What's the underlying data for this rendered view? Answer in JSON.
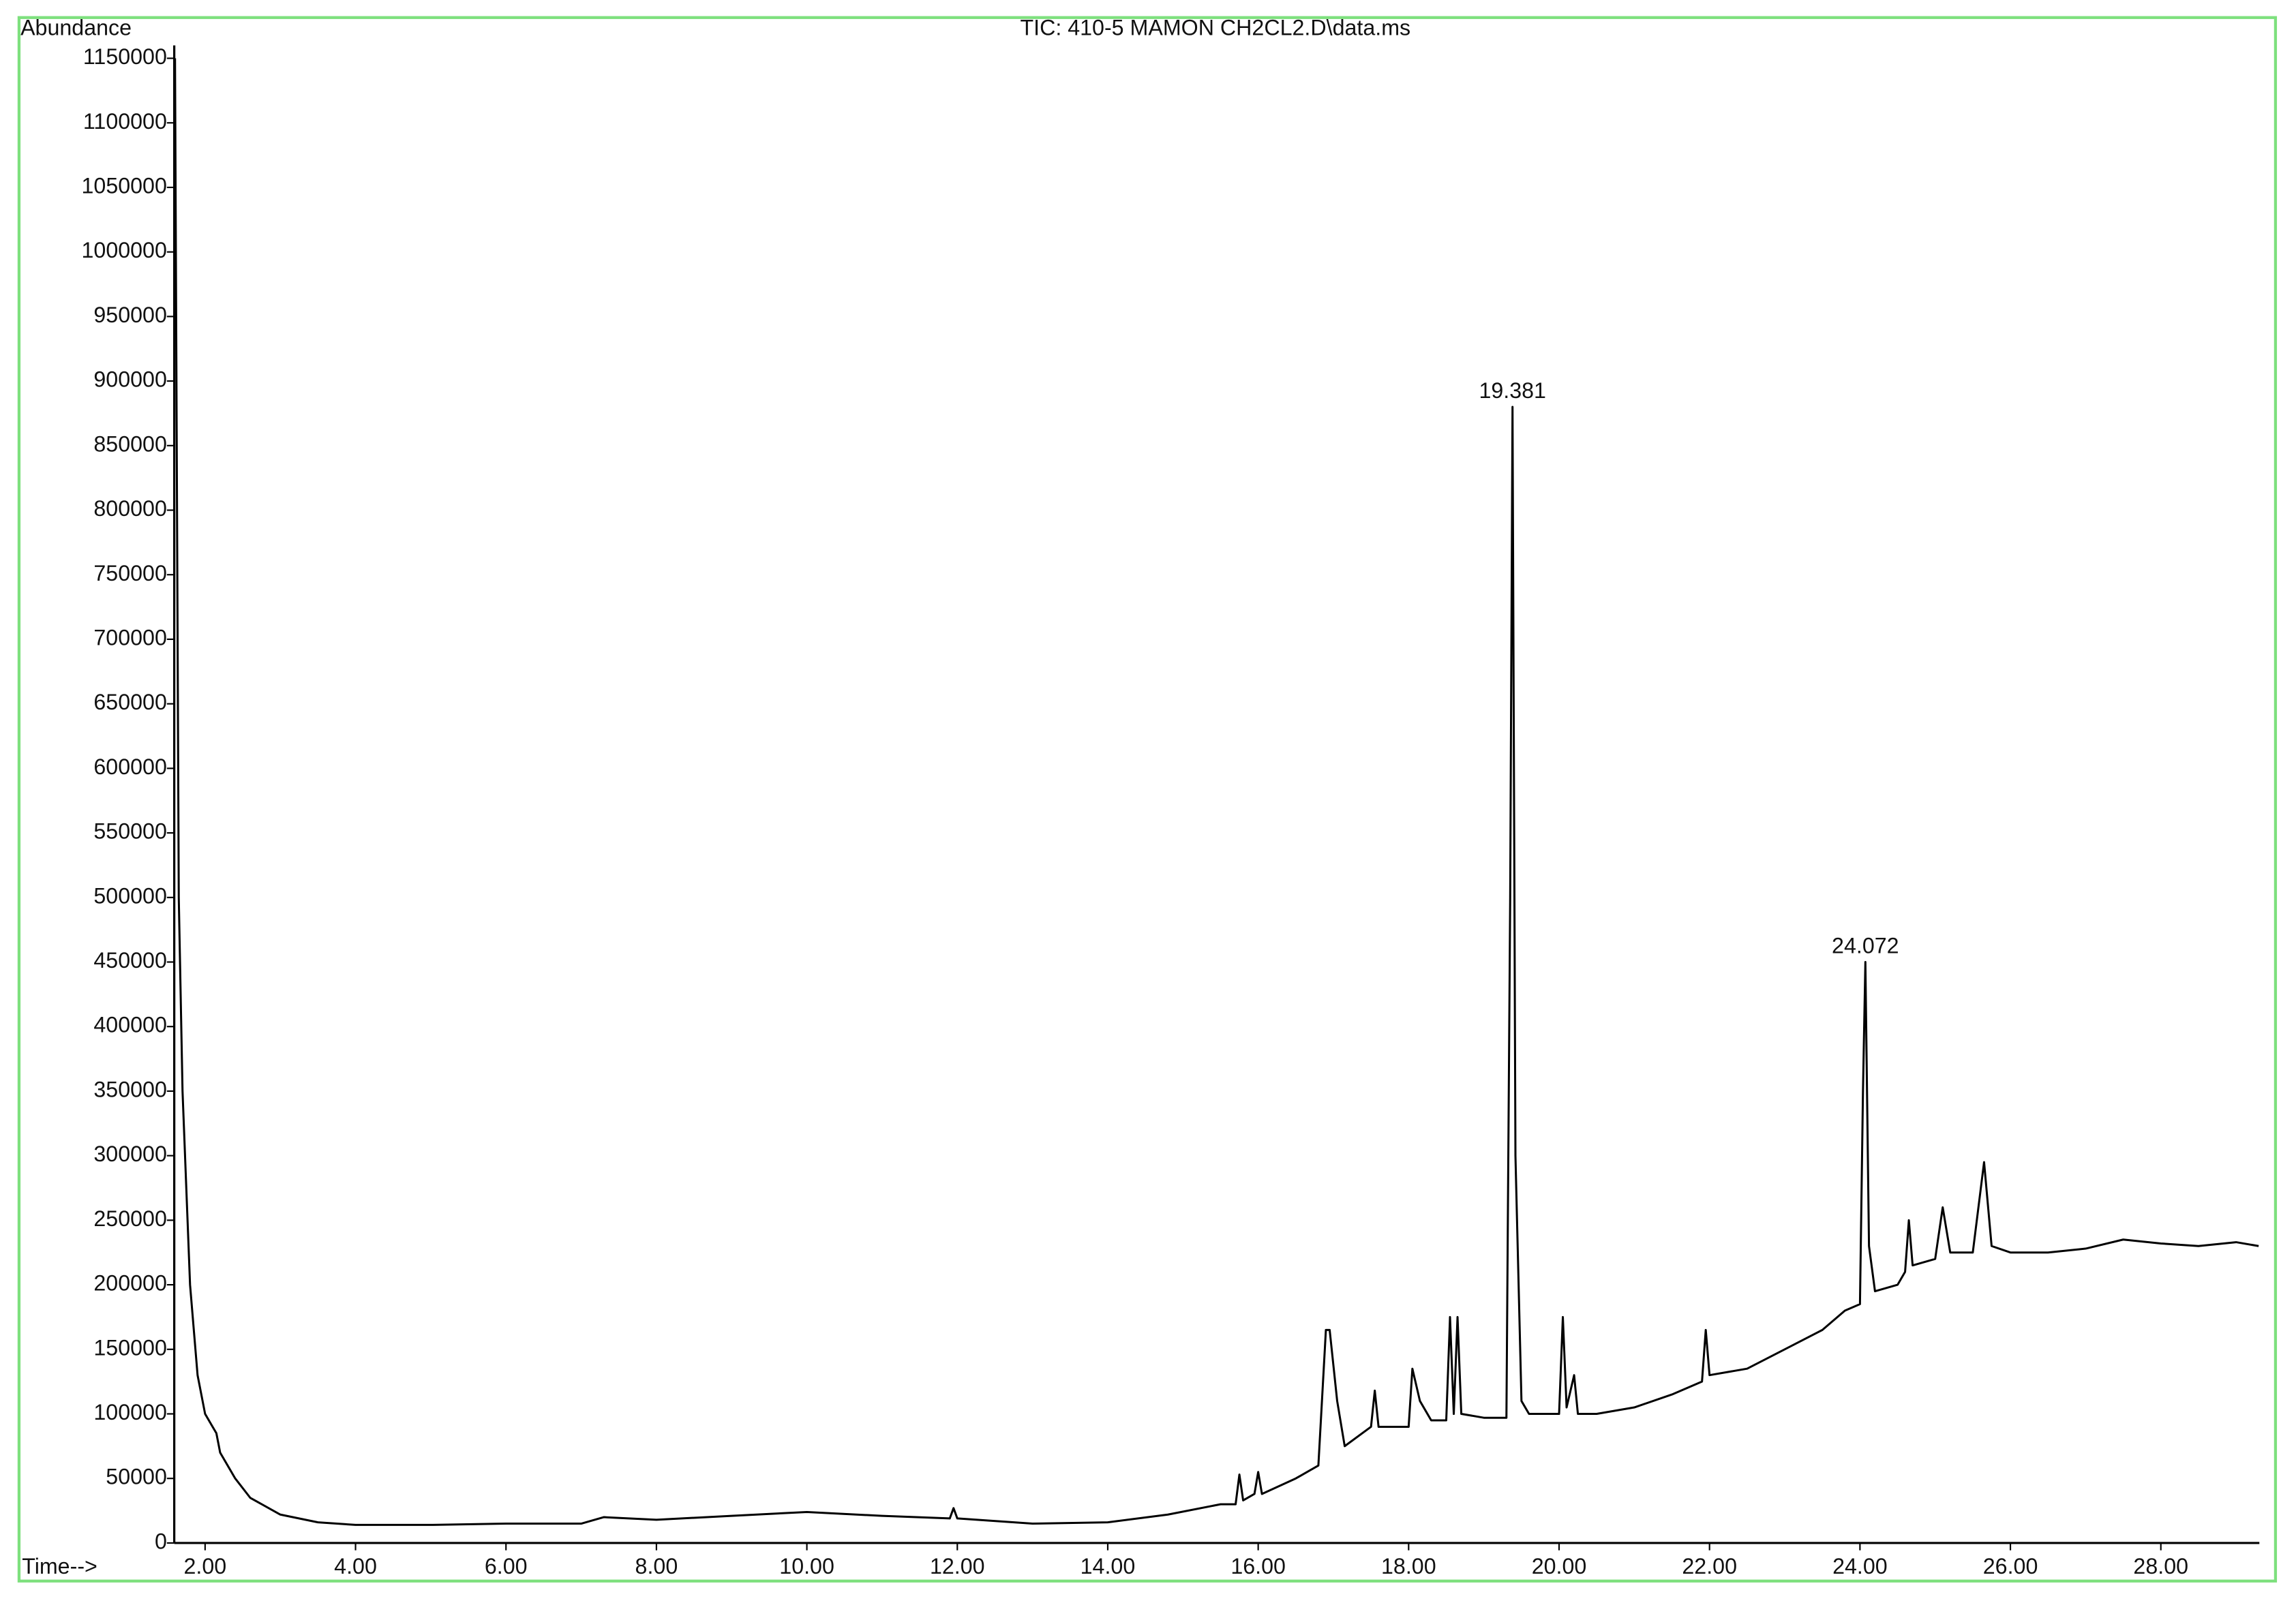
{
  "chart_data": {
    "type": "line",
    "title": "TIC: 410-5 MAMON CH2CL2.D\\data.ms",
    "y_label": "Abundance",
    "x_label": "Time-->",
    "color": "#000000",
    "x": [
      1.6,
      1.65,
      1.7,
      1.8,
      1.9,
      2.0,
      2.1,
      2.15,
      2.2,
      2.4,
      2.6,
      3.0,
      3.5,
      4.0,
      5.0,
      6.0,
      7.0,
      7.3,
      8.0,
      9.0,
      10.0,
      11.0,
      11.9,
      11.95,
      12.0,
      13.0,
      14.0,
      14.8,
      15.5,
      15.7,
      15.75,
      15.8,
      15.95,
      16.0,
      16.05,
      16.5,
      16.8,
      16.9,
      16.95,
      17.05,
      17.15,
      17.5,
      17.55,
      17.6,
      18.0,
      18.05,
      18.15,
      18.3,
      18.5,
      18.55,
      18.6,
      18.65,
      18.7,
      19.0,
      19.3,
      19.35,
      19.381,
      19.42,
      19.5,
      19.6,
      20.0,
      20.05,
      20.1,
      20.2,
      20.25,
      20.5,
      21.0,
      21.5,
      21.9,
      21.95,
      22.0,
      22.5,
      23.0,
      23.5,
      23.8,
      24.0,
      24.04,
      24.072,
      24.12,
      24.2,
      24.5,
      24.6,
      24.65,
      24.7,
      25.0,
      25.1,
      25.2,
      25.5,
      25.65,
      25.75,
      26.0,
      26.5,
      27.0,
      27.5,
      28.0,
      28.5,
      29.0,
      29.3
    ],
    "values": [
      1150000,
      500000,
      350000,
      200000,
      130000,
      100000,
      90000,
      85000,
      70000,
      50000,
      35000,
      22000,
      16000,
      14000,
      14000,
      15000,
      15000,
      20000,
      18000,
      21000,
      24000,
      21000,
      19000,
      27000,
      19000,
      15000,
      16000,
      22000,
      30000,
      30000,
      53000,
      33000,
      38000,
      55000,
      38000,
      50000,
      60000,
      165000,
      165000,
      110000,
      75000,
      90000,
      118000,
      90000,
      90000,
      135000,
      110000,
      95000,
      95000,
      175000,
      100000,
      175000,
      100000,
      97000,
      97000,
      500000,
      880000,
      300000,
      110000,
      100000,
      100000,
      175000,
      105000,
      130000,
      100000,
      100000,
      105000,
      115000,
      125000,
      165000,
      130000,
      135000,
      150000,
      165000,
      180000,
      185000,
      350000,
      450000,
      230000,
      195000,
      200000,
      210000,
      250000,
      215000,
      220000,
      260000,
      225000,
      225000,
      295000,
      230000,
      225000,
      225000,
      228000,
      235000,
      232000,
      230000,
      233000,
      230000
    ],
    "annotations": [
      {
        "text": "19.381",
        "x": 19.381,
        "y": 880000
      },
      {
        "text": "24.072",
        "x": 24.072,
        "y": 450000
      }
    ],
    "xlim": [
      1.59,
      29.31
    ],
    "ylim": [
      0,
      1160000
    ],
    "xticks": [
      {
        "value": 2,
        "label": "2.00"
      },
      {
        "value": 4,
        "label": "4.00"
      },
      {
        "value": 6,
        "label": "6.00"
      },
      {
        "value": 8,
        "label": "8.00"
      },
      {
        "value": 10,
        "label": "10.00"
      },
      {
        "value": 12,
        "label": "12.00"
      },
      {
        "value": 14,
        "label": "14.00"
      },
      {
        "value": 16,
        "label": "16.00"
      },
      {
        "value": 18,
        "label": "18.00"
      },
      {
        "value": 20,
        "label": "20.00"
      },
      {
        "value": 22,
        "label": "22.00"
      },
      {
        "value": 24,
        "label": "24.00"
      },
      {
        "value": 26,
        "label": "26.00"
      },
      {
        "value": 28,
        "label": "28.00"
      }
    ],
    "yticks": [
      0,
      50000,
      100000,
      150000,
      200000,
      250000,
      300000,
      350000,
      400000,
      450000,
      500000,
      550000,
      600000,
      650000,
      700000,
      750000,
      800000,
      850000,
      900000,
      950000,
      1000000,
      1050000,
      1100000,
      1150000
    ]
  }
}
